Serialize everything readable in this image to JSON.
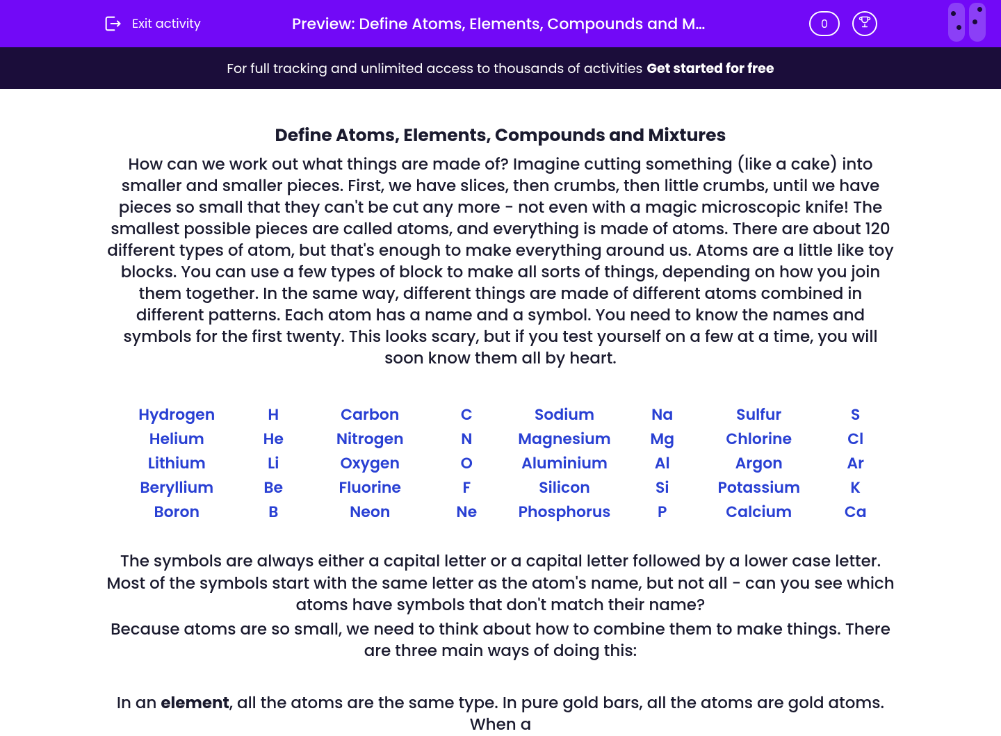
{
  "colors": {
    "header_bg": "#7209f7",
    "banner_bg": "#1b0d3a",
    "body_text": "#1a1a2e",
    "link_blue": "#2940d3",
    "white": "#ffffff",
    "tube_bg": "#8b3ff7"
  },
  "header": {
    "exit_label": "Exit activity",
    "title": "Preview: Define Atoms, Elements, Compounds and Mixtur…",
    "score": "0"
  },
  "banner": {
    "text": "For full tracking and unlimited access to thousands of activities",
    "cta": "Get started for free"
  },
  "body": {
    "heading": "Define Atoms, Elements, Compounds and Mixtures",
    "intro": "How can we work out what things are made of? Imagine cutting something (like a cake) into smaller and smaller pieces. First, we have slices, then crumbs, then little crumbs, until we have pieces so small that they can't be cut any more - not even with a magic microscopic knife! The smallest possible pieces are called atoms, and everything is made of atoms. There are about 120 different types of atom, but that's enough to make everything around us. Atoms are a little like toy blocks. You can use a few types of block to make all sorts of things, depending on how you join them together. In the same way, different things are made of different atoms combined in different patterns. Each atom has a name and a symbol. You need to know the names and symbols for the first twenty. This looks scary, but if you test yourself on a few at a time, you will soon know them all by heart.",
    "symbols_note": "The symbols are always either a capital letter or a capital letter followed by a lower case letter. Most of the symbols start with the same letter as the atom's name, but not all - can you see which atoms have symbols that don't match their name?",
    "combine_note": "Because atoms are so small, we need to think about how to combine them to make things. There are three main ways of doing this:",
    "element_intro_prefix": "In an ",
    "element_intro_bold": "element",
    "element_intro_suffix": ", all the atoms are the same type. In pure gold bars, all the atoms are gold atoms. When a"
  },
  "elements": {
    "type": "table",
    "layout": "4-column-pairs",
    "font_color": "#2940d3",
    "font_size_pt": 17,
    "columns": [
      [
        {
          "name": "Hydrogen",
          "symbol": "H"
        },
        {
          "name": "Helium",
          "symbol": "He"
        },
        {
          "name": "Lithium",
          "symbol": "Li"
        },
        {
          "name": "Beryllium",
          "symbol": "Be"
        },
        {
          "name": "Boron",
          "symbol": "B"
        }
      ],
      [
        {
          "name": "Carbon",
          "symbol": "C"
        },
        {
          "name": "Nitrogen",
          "symbol": "N"
        },
        {
          "name": "Oxygen",
          "symbol": "O"
        },
        {
          "name": "Fluorine",
          "symbol": "F"
        },
        {
          "name": "Neon",
          "symbol": "Ne"
        }
      ],
      [
        {
          "name": "Sodium",
          "symbol": "Na"
        },
        {
          "name": "Magnesium",
          "symbol": "Mg"
        },
        {
          "name": "Aluminium",
          "symbol": "Al"
        },
        {
          "name": "Silicon",
          "symbol": "Si"
        },
        {
          "name": "Phosphorus",
          "symbol": "P"
        }
      ],
      [
        {
          "name": "Sulfur",
          "symbol": "S"
        },
        {
          "name": "Chlorine",
          "symbol": "Cl"
        },
        {
          "name": "Argon",
          "symbol": "Ar"
        },
        {
          "name": "Potassium",
          "symbol": "K"
        },
        {
          "name": "Calcium",
          "symbol": "Ca"
        }
      ]
    ]
  }
}
